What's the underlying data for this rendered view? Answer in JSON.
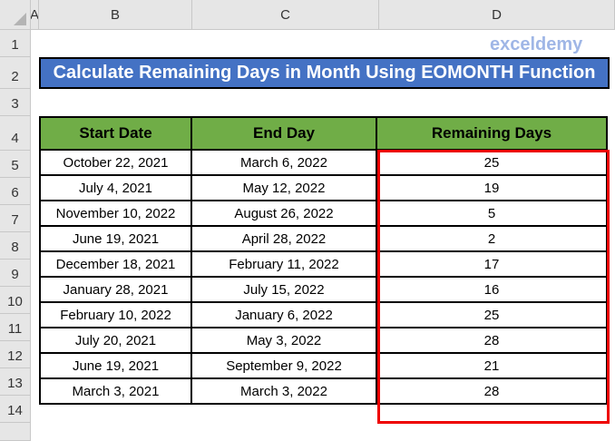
{
  "columns": [
    "A",
    "B",
    "C",
    "D"
  ],
  "rows": [
    "1",
    "2",
    "3",
    "4",
    "5",
    "6",
    "7",
    "8",
    "9",
    "10",
    "11",
    "12",
    "13",
    "14"
  ],
  "title": "Calculate Remaining Days in Month Using EOMONTH Function",
  "headers": [
    "Start Date",
    "End Day",
    "Remaining Days"
  ],
  "data": [
    [
      "October 22, 2021",
      "March 6, 2022",
      "25"
    ],
    [
      "July 4, 2021",
      "May 12, 2022",
      "19"
    ],
    [
      "November 10, 2022",
      "August 26, 2022",
      "5"
    ],
    [
      "June 19, 2021",
      "April 28, 2022",
      "2"
    ],
    [
      "December 18, 2021",
      "February 11, 2022",
      "17"
    ],
    [
      "January 28, 2021",
      "July 15, 2022",
      "16"
    ],
    [
      "February 10, 2022",
      "January 6, 2022",
      "25"
    ],
    [
      "July 20, 2021",
      "May 3, 2022",
      "28"
    ],
    [
      "June 19, 2021",
      "September 9, 2022",
      "21"
    ],
    [
      "March 3, 2021",
      "March 3, 2022",
      "28"
    ]
  ],
  "watermark": "exceldemy",
  "colors": {
    "title_bg": "#4472c4",
    "header_bg": "#70ad47",
    "highlight": "#e00000"
  }
}
